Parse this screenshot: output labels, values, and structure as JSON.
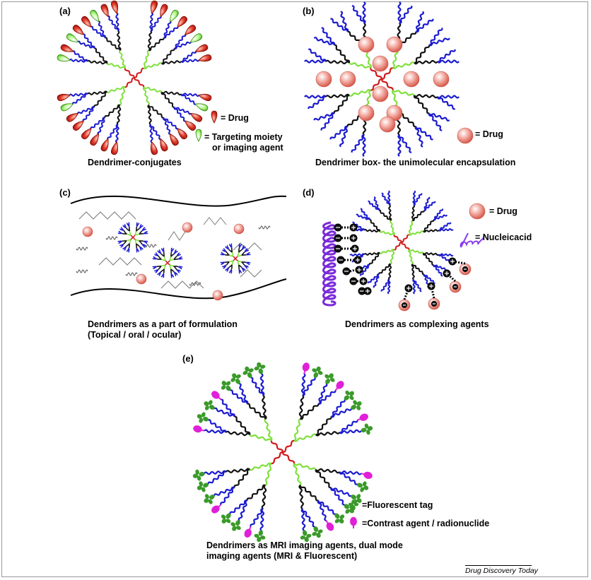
{
  "panels": {
    "a": {
      "label": "(a)",
      "caption": "Dendrimer-conjugates",
      "legend": [
        {
          "icon": "drug-droplet",
          "color": "#e03a2a",
          "text": "= Drug"
        },
        {
          "icon": "targeting-droplet",
          "color": "#8ef05a",
          "text": "= Targeting moiety",
          "text2": "or imaging agent"
        }
      ]
    },
    "b": {
      "label": "(b)",
      "caption": "Dendrimer box- the unimolecular encapsulation",
      "legend": [
        {
          "icon": "drug-sphere",
          "color": "#f08a80",
          "text": "= Drug"
        }
      ]
    },
    "c": {
      "label": "(c)",
      "caption_line1": "Dendrimers as a part of formulation",
      "caption_line2": "(Topical / oral / ocular)"
    },
    "d": {
      "label": "(d)",
      "caption": "Dendrimers as complexing agents",
      "legend": [
        {
          "icon": "drug-sphere",
          "color": "#f08a80",
          "text": "= Drug"
        },
        {
          "icon": "nucleic-acid-coil",
          "color": "#8a3cf0",
          "text": "= Nucleicacid"
        }
      ]
    },
    "e": {
      "label": "(e)",
      "caption_line1": "Dendrimers as MRI imaging agents, dual mode",
      "caption_line2": "imaging agents (MRI & Fluorescent)",
      "legend": [
        {
          "icon": "fluorescent-tag",
          "color": "#3a9a2a",
          "text": "=Fluorescent tag"
        },
        {
          "icon": "contrast-agent",
          "color": "#e020d8",
          "text": "=Contrast agent / radionuclide"
        }
      ]
    }
  },
  "footer": {
    "source": "Drug Discovery Today"
  },
  "colors": {
    "core": "#d01a1a",
    "gen1": "#7ee03a",
    "gen2": "#111111",
    "gen3": "#1a1ad0"
  }
}
